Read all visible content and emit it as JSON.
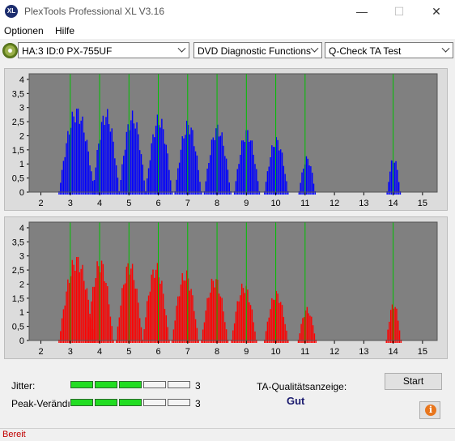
{
  "window": {
    "title": "PlexTools Professional XL V3.16",
    "icon_text": "XL",
    "minimize": "—",
    "maximize": "☐",
    "close": "✕"
  },
  "menu": {
    "items": [
      "Optionen",
      "Hilfe"
    ]
  },
  "toolbar": {
    "drive": "HA:3 ID:0  PX-755UF",
    "function": "DVD Diagnostic Functions",
    "test": "Q-Check TA Test"
  },
  "colors": {
    "upper_bars": "#0000ff",
    "lower_bars": "#ff0000",
    "markers": "#00c000",
    "plot_bg": "#808080"
  },
  "chart_data": [
    {
      "type": "histogram",
      "series_color": "blue",
      "x_ticks": [
        "2",
        "3",
        "4",
        "5",
        "6",
        "7",
        "8",
        "9",
        "10",
        "11",
        "12",
        "13",
        "14",
        "15"
      ],
      "y_ticks": [
        "4",
        "3,5",
        "3",
        "2,5",
        "2",
        "1,5",
        "1",
        "0,5",
        "0"
      ],
      "xlim": [
        1.6,
        15.5
      ],
      "ylim": [
        0,
        4.2
      ],
      "markers": [
        3,
        4,
        5,
        6,
        7,
        8,
        9,
        10,
        11,
        14
      ],
      "peaks": [
        {
          "center": 3.2,
          "width": 1.2,
          "height": 3.1
        },
        {
          "center": 4.2,
          "width": 0.9,
          "height": 3.0
        },
        {
          "center": 5.1,
          "width": 0.9,
          "height": 2.9
        },
        {
          "center": 6.0,
          "width": 0.9,
          "height": 2.8
        },
        {
          "center": 7.0,
          "width": 0.9,
          "height": 2.6
        },
        {
          "center": 8.0,
          "width": 0.9,
          "height": 2.45
        },
        {
          "center": 9.0,
          "width": 0.85,
          "height": 2.3
        },
        {
          "center": 10.0,
          "width": 0.8,
          "height": 2.0
        },
        {
          "center": 11.05,
          "width": 0.55,
          "height": 1.3
        },
        {
          "center": 14.0,
          "width": 0.45,
          "height": 1.3
        }
      ]
    },
    {
      "type": "histogram",
      "series_color": "red",
      "x_ticks": [
        "2",
        "3",
        "4",
        "5",
        "6",
        "7",
        "8",
        "9",
        "10",
        "11",
        "12",
        "13",
        "14",
        "15"
      ],
      "y_ticks": [
        "4",
        "3,5",
        "3",
        "2,5",
        "2",
        "1,5",
        "1",
        "0,5",
        "0"
      ],
      "xlim": [
        1.6,
        15.5
      ],
      "ylim": [
        0,
        4.2
      ],
      "markers": [
        3,
        4,
        5,
        6,
        7,
        8,
        9,
        10,
        11,
        14
      ],
      "peaks": [
        {
          "center": 3.2,
          "width": 1.2,
          "height": 3.1
        },
        {
          "center": 4.0,
          "width": 0.9,
          "height": 3.0
        },
        {
          "center": 5.0,
          "width": 0.9,
          "height": 2.9
        },
        {
          "center": 5.9,
          "width": 0.9,
          "height": 2.8
        },
        {
          "center": 6.9,
          "width": 0.9,
          "height": 2.55
        },
        {
          "center": 7.9,
          "width": 0.9,
          "height": 2.35
        },
        {
          "center": 8.9,
          "width": 0.85,
          "height": 2.1
        },
        {
          "center": 10.0,
          "width": 0.8,
          "height": 1.8
        },
        {
          "center": 11.05,
          "width": 0.6,
          "height": 1.2
        },
        {
          "center": 14.0,
          "width": 0.5,
          "height": 1.4
        }
      ]
    }
  ],
  "bottom": {
    "jitter_label": "Jitter:",
    "jitter_value": "3",
    "jitter_level": 3,
    "peak_label": "Peak-Verändı",
    "peak_value": "3",
    "peak_level": 3,
    "meter_cells": 5,
    "qa_label": "TA-Qualitätsanzeige:",
    "qa_value": "Gut",
    "start_button": "Start",
    "info_icon": "i"
  },
  "status": {
    "text": "Bereit"
  }
}
